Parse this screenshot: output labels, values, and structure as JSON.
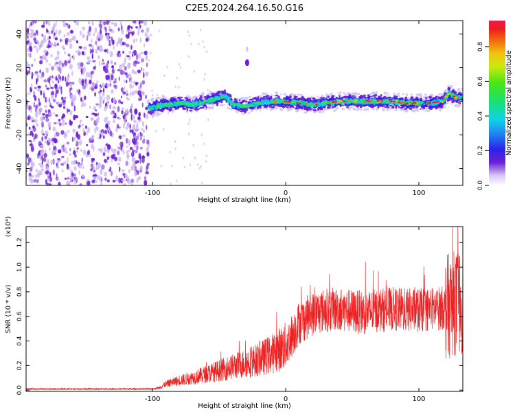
{
  "title": "C2E5.2024.264.16.50.G16",
  "colors": {
    "snr_line": "#ee2222",
    "noise_dot": "#6a1fd6",
    "axis": "#000000"
  },
  "chart_data": [
    {
      "type": "heatmap",
      "xlabel": "Height of straight line (km)",
      "ylabel": "Frequency (Hz)",
      "xlim": [
        -195,
        133
      ],
      "ylim": [
        -50,
        48
      ],
      "x_ticks": [
        -100,
        0,
        100
      ],
      "y_ticks": [
        -40,
        -20,
        0,
        20,
        40
      ],
      "noise_region_x": [
        -195,
        -103
      ],
      "feature_ridge": [
        [
          -103,
          -4
        ],
        [
          -90,
          -2
        ],
        [
          -80,
          -1
        ],
        [
          -70,
          -2
        ],
        [
          -60,
          0
        ],
        [
          -50,
          2
        ],
        [
          -45,
          3
        ],
        [
          -40,
          -2
        ],
        [
          -30,
          -3
        ],
        [
          -20,
          -1
        ],
        [
          -10,
          0
        ],
        [
          0,
          0
        ],
        [
          10,
          -1
        ],
        [
          20,
          -2
        ],
        [
          30,
          -1
        ],
        [
          40,
          0
        ],
        [
          50,
          0
        ],
        [
          60,
          0
        ],
        [
          70,
          0
        ],
        [
          80,
          0
        ],
        [
          90,
          -1
        ],
        [
          100,
          -1
        ],
        [
          110,
          -1
        ],
        [
          118,
          0
        ],
        [
          123,
          5
        ],
        [
          128,
          2
        ],
        [
          133,
          3
        ]
      ],
      "feature_blob": {
        "x": -29,
        "y": 23
      },
      "colorbar": {
        "label": "Normalized spectral amplitude",
        "range": [
          0,
          0.95
        ],
        "ticks": [
          "0.0",
          "0.2",
          "0.4",
          "0.6",
          "0.8"
        ]
      }
    },
    {
      "type": "line",
      "xlabel": "Height of straight line (km)",
      "ylabel": "SNR (10 * v/v)",
      "multiplier": "(x10⁴)",
      "xlim": [
        -195,
        133
      ],
      "ylim": [
        -0.01,
        1.33
      ],
      "x_ticks": [
        -100,
        0,
        100
      ],
      "y_ticks": [
        "0.0",
        "0.2",
        "0.4",
        "0.6",
        "0.8",
        "1.0",
        "1.2"
      ],
      "series": [
        {
          "x": [
            -195,
            -150,
            -100,
            -95,
            -90,
            -80,
            -70,
            -60,
            -50,
            -40,
            -30,
            -20,
            -10,
            -5,
            0,
            5,
            10,
            20,
            30,
            40,
            50,
            60,
            70,
            80,
            90,
            100,
            110,
            120,
            125,
            130,
            133
          ],
          "y": [
            0.01,
            0.01,
            0.01,
            0.02,
            0.05,
            0.08,
            0.1,
            0.13,
            0.16,
            0.19,
            0.22,
            0.25,
            0.3,
            0.33,
            0.36,
            0.45,
            0.55,
            0.62,
            0.65,
            0.66,
            0.64,
            0.63,
            0.65,
            0.66,
            0.65,
            0.65,
            0.66,
            0.67,
            0.7,
            0.72,
            0.72
          ]
        }
      ]
    }
  ]
}
